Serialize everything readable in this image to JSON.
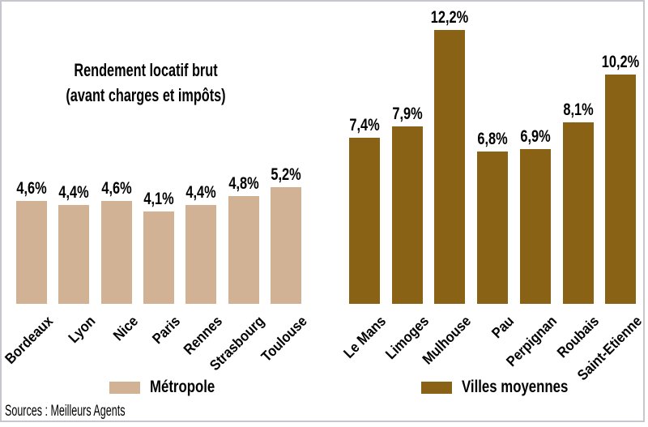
{
  "card": {
    "title_line1": "Rendement locatif brut",
    "title_line2": "(avant charges et impôts)",
    "source": "Sources : Meilleurs Agents"
  },
  "legend": {
    "metropole_label": "Métropole",
    "villes_moyennes_label": "Villes moyennes"
  },
  "chart_data": {
    "type": "bar",
    "title": "Rendement locatif brut (avant charges et impôts)",
    "value_unit": "%",
    "value_format": "french-decimal-comma",
    "ylim": [
      0,
      13
    ],
    "grid": false,
    "axis_lines": false,
    "legend_position": "bottom",
    "border_color": "#c6c6cc",
    "series": [
      {
        "name": "Métropole",
        "color": "#D1B295",
        "categories": [
          "Bordeaux",
          "Lyon",
          "Nice",
          "Paris",
          "Rennes",
          "Strasbourg",
          "Toulouse"
        ],
        "values": [
          4.6,
          4.4,
          4.6,
          4.1,
          4.4,
          4.8,
          5.2
        ],
        "labels": [
          "4,6%",
          "4,4%",
          "4,6%",
          "4,1%",
          "4,4%",
          "4,8%",
          "5,2%"
        ]
      },
      {
        "name": "Villes moyennes",
        "color": "#8A6215",
        "categories": [
          "Le Mans",
          "Limoges",
          "Mulhouse",
          "Pau",
          "Perpignan",
          "Roubais",
          "Saint-Etienne"
        ],
        "values": [
          7.4,
          7.9,
          12.2,
          6.8,
          6.9,
          8.1,
          10.2
        ],
        "labels": [
          "7,4%",
          "7,9%",
          "12,2%",
          "6,8%",
          "6,9%",
          "8,1%",
          "10,2%"
        ]
      }
    ]
  }
}
